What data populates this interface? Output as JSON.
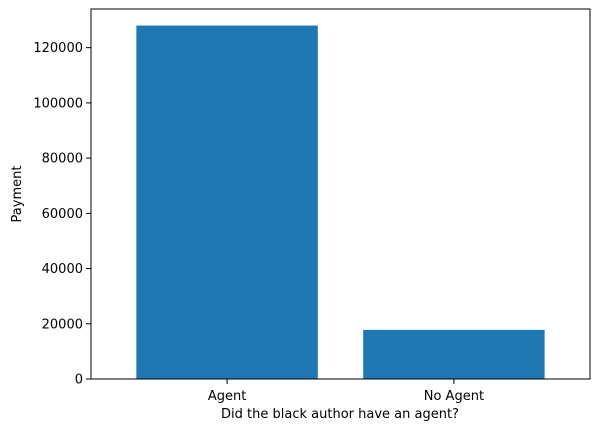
{
  "chart_data": {
    "type": "bar",
    "categories": [
      "Agent",
      "No Agent"
    ],
    "values": [
      128000,
      17800
    ],
    "xlabel": "Did the black author have an agent?",
    "ylabel": "Payment",
    "ylim": [
      0,
      134000
    ],
    "yticks": [
      0,
      20000,
      40000,
      60000,
      80000,
      100000,
      120000
    ],
    "bar_color": "#1f77b4",
    "grid": false
  }
}
